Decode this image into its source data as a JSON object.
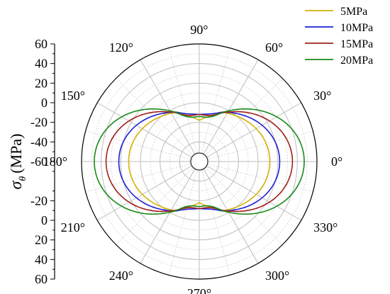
{
  "chart_data": {
    "type": "line",
    "subtype": "polar",
    "ylabel": {
      "symbol": "σ",
      "subscript": "θ",
      "unit": "(MPa)"
    },
    "radial_axis": {
      "ticks": [
        60,
        40,
        20,
        0,
        -20,
        -40,
        -60
      ],
      "ticks_lower": [
        -20,
        0,
        20,
        40,
        60
      ],
      "range": [
        -60,
        60
      ],
      "grid": true
    },
    "angular_axis": {
      "unit": "°",
      "labels": [
        "0°",
        "30°",
        "60°",
        "90°",
        "120°",
        "150°",
        "180°",
        "210°",
        "240°",
        "270°",
        "300°",
        "330°"
      ],
      "angles": [
        0,
        30,
        60,
        90,
        120,
        150,
        180,
        210,
        240,
        270,
        300,
        330
      ]
    },
    "legend_position": "top-right",
    "series": [
      {
        "name": "5MPa",
        "color": "#d4b106",
        "a": 12,
        "b": -8,
        "min_at_90": -18
      },
      {
        "name": "10MPa",
        "color": "#1f1fd6",
        "a": 22,
        "b": -10,
        "min_at_90": -12
      },
      {
        "name": "15MPa",
        "color": "#a0201a",
        "a": 35,
        "b": -14,
        "min_at_90": -12
      },
      {
        "name": "20MPa",
        "color": "#1a8a1a",
        "a": 47,
        "b": -16,
        "min_at_90": -14
      }
    ]
  }
}
